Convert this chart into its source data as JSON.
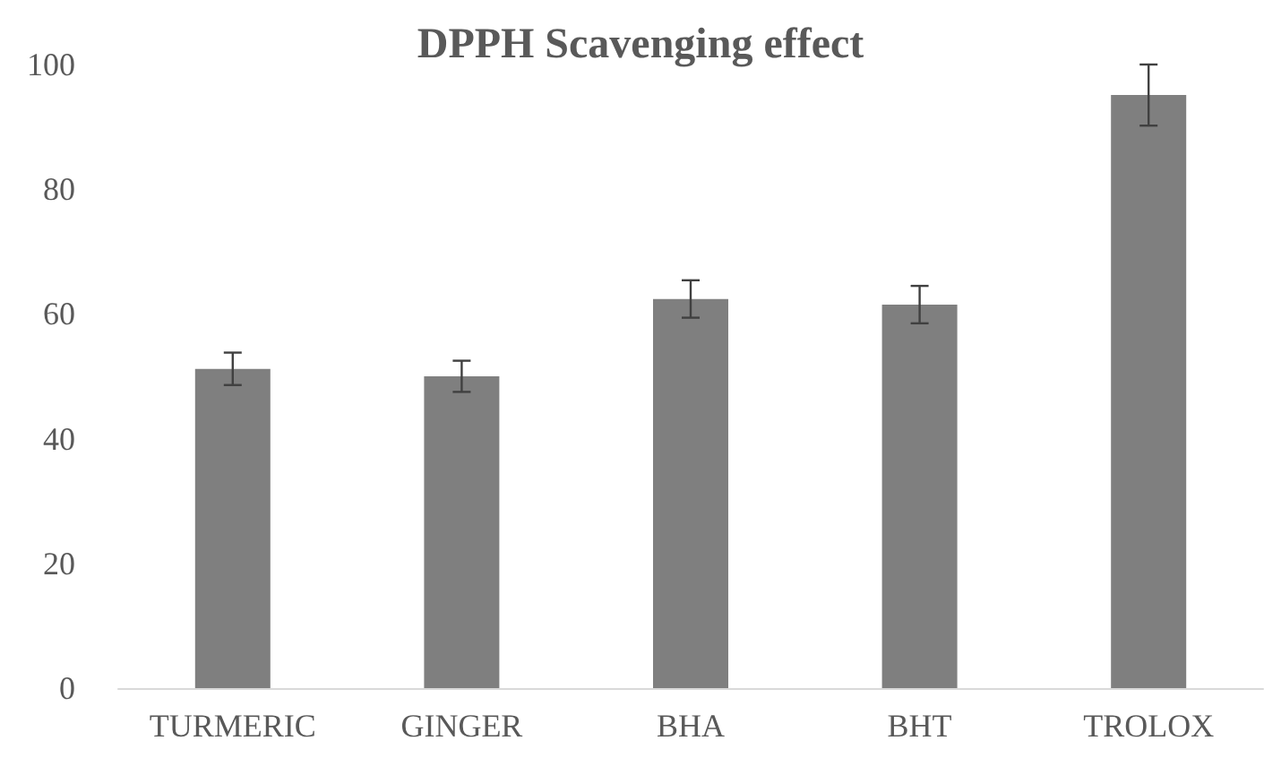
{
  "chart_data": {
    "type": "bar",
    "title": "DPPH Scavenging effect",
    "categories": [
      "TURMERIC",
      "GINGER",
      "BHA",
      "BHT",
      "TROLOX"
    ],
    "values": [
      51.2,
      50,
      62.4,
      61.5,
      95.1
    ],
    "errors": [
      2.6,
      2.5,
      3,
      3,
      4.9
    ],
    "color": "#7f7f7f",
    "ylim": [
      0,
      100
    ],
    "yticks": [
      0,
      20,
      40,
      60,
      80,
      100
    ],
    "grid": false
  }
}
